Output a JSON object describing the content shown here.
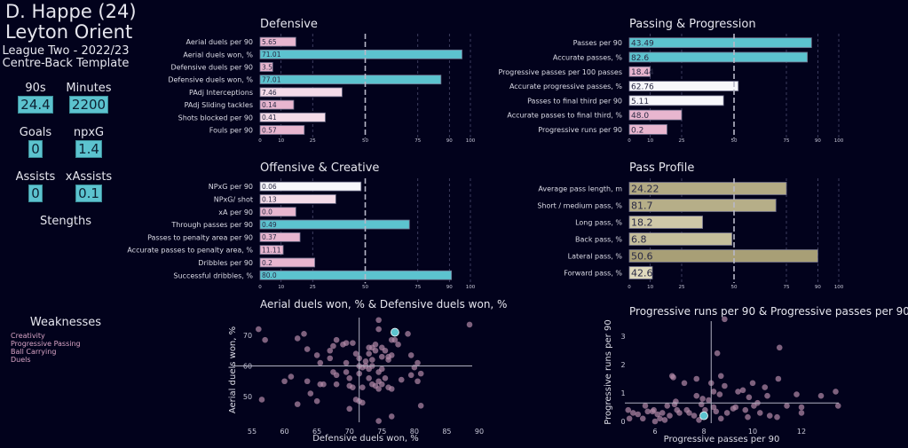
{
  "player": {
    "name": "D. Happe (24)",
    "team": "Leyton Orient",
    "league_season": "League Two - 2022/23",
    "template": "Centre-Back Template"
  },
  "stats": [
    {
      "label": "90s",
      "value": "24.4"
    },
    {
      "label": "Minutes",
      "value": "2200"
    },
    {
      "label": "Goals",
      "value": "0"
    },
    {
      "label": "npxG",
      "value": "1.4"
    },
    {
      "label": "Assists",
      "value": "0"
    },
    {
      "label": "xAssists",
      "value": "0.1"
    }
  ],
  "strengths_title": "Stengths",
  "strengths": [],
  "weaknesses_title": "Weaknesses",
  "weaknesses": [
    "Creativity",
    "Progressive Passing",
    "Ball Carrying",
    "Duels"
  ],
  "colors": {
    "background": "#02021c",
    "high": "#5cc3cf",
    "low": "#e8b6cf",
    "mid": "#f7f7fb",
    "pass_profile": "#aba27a",
    "highlight": "#5cc3cf",
    "scatter": "#b48aa8"
  },
  "chart_data": [
    {
      "type": "bar",
      "orientation": "horizontal",
      "title": "Defensive",
      "xticks": [
        0,
        10,
        25,
        50,
        75,
        90,
        100
      ],
      "xlim": [
        0,
        100
      ],
      "reference_line": 50,
      "bars": [
        {
          "label": "Aerial duels per 90",
          "value_label": "5.65",
          "percentile": 17
        },
        {
          "label": "Aerial duels won, %",
          "value_label": "71.01",
          "percentile": 96
        },
        {
          "label": "Defensive duels per 90",
          "value_label": "3.5",
          "percentile": 6
        },
        {
          "label": "Defensive duels won, %",
          "value_label": "77.01",
          "percentile": 86
        },
        {
          "label": "PAdj Interceptions",
          "value_label": "7.46",
          "percentile": 39
        },
        {
          "label": "PAdj Sliding tackles",
          "value_label": "0.14",
          "percentile": 16
        },
        {
          "label": "Shots blocked per 90",
          "value_label": "0.41",
          "percentile": 31
        },
        {
          "label": "Fouls per 90",
          "value_label": "0.57",
          "percentile": 21
        }
      ]
    },
    {
      "type": "bar",
      "orientation": "horizontal",
      "title": "Passing & Progression",
      "xticks": [
        0,
        10,
        25,
        50,
        75,
        90,
        100
      ],
      "xlim": [
        0,
        100
      ],
      "reference_line": 50,
      "bars": [
        {
          "label": "Passes per 90",
          "value_label": "43.49",
          "percentile": 87
        },
        {
          "label": "Accurate passes, %",
          "value_label": "82.6",
          "percentile": 85
        },
        {
          "label": "Progressive passes per 100 passes",
          "value_label": "18.44",
          "percentile": 10
        },
        {
          "label": "Accurate progressive passes, %",
          "value_label": "62.76",
          "percentile": 52
        },
        {
          "label": "Passes to final third per 90",
          "value_label": "5.11",
          "percentile": 45
        },
        {
          "label": "Accurate passes to final third, %",
          "value_label": "48.0",
          "percentile": 25
        },
        {
          "label": "Progressive runs per 90",
          "value_label": "0.2",
          "percentile": 18
        }
      ]
    },
    {
      "type": "bar",
      "orientation": "horizontal",
      "title": "Offensive & Creative",
      "xticks": [
        0,
        10,
        25,
        50,
        75,
        90,
        100
      ],
      "xlim": [
        0,
        100
      ],
      "reference_line": 50,
      "bars": [
        {
          "label": "NPxG per 90",
          "value_label": "0.06",
          "percentile": 48
        },
        {
          "label": "NPxG/ shot",
          "value_label": "0.13",
          "percentile": 36
        },
        {
          "label": "xA per 90",
          "value_label": "0.0",
          "percentile": 17
        },
        {
          "label": "Through passes per 90",
          "value_label": "0.49",
          "percentile": 71
        },
        {
          "label": "Passes to penalty area per 90",
          "value_label": "0.37",
          "percentile": 19
        },
        {
          "label": "Accurate passes to penalty area, %",
          "value_label": "11.11",
          "percentile": 11
        },
        {
          "label": "Dribbles per 90",
          "value_label": "0.2",
          "percentile": 26
        },
        {
          "label": "Successful dribbles, %",
          "value_label": "80.0",
          "percentile": 91
        }
      ]
    },
    {
      "type": "bar",
      "orientation": "horizontal",
      "title": "Pass Profile",
      "xticks": [
        0,
        10,
        25,
        50,
        75,
        90,
        100
      ],
      "xlim": [
        0,
        100
      ],
      "reference_line": 50,
      "bars": [
        {
          "label": "Average pass length, m",
          "value_label": "24.22",
          "percentile": 75
        },
        {
          "label": "Short / medium pass, %",
          "value_label": "81.7",
          "percentile": 70
        },
        {
          "label": "Long pass, %",
          "value_label": "18.2",
          "percentile": 35
        },
        {
          "label": "Back pass, %",
          "value_label": "6.8",
          "percentile": 49
        },
        {
          "label": "Lateral pass, %",
          "value_label": "50.6",
          "percentile": 90
        },
        {
          "label": "Forward pass, %",
          "value_label": "42.6",
          "percentile": 11
        }
      ]
    },
    {
      "type": "scatter",
      "title": "Aerial duels won, % & Defensive duels won, %",
      "xlabel": "Defensive duels won, %",
      "ylabel": "Aerial duels won, %",
      "xticks": [
        55,
        60,
        65,
        70,
        75,
        80,
        85,
        90
      ],
      "yticks": [
        50,
        60,
        70
      ],
      "mean_x": 71.5,
      "mean_y": 60,
      "highlight": [
        77,
        71
      ],
      "points": [
        [
          56,
          72
        ],
        [
          57,
          68.5
        ],
        [
          56.5,
          49
        ],
        [
          62,
          69
        ],
        [
          63,
          70.5
        ],
        [
          63.5,
          65.5
        ],
        [
          63.5,
          55
        ],
        [
          62,
          47.5
        ],
        [
          64,
          51
        ],
        [
          65,
          63.5
        ],
        [
          65.5,
          61
        ],
        [
          65.5,
          54
        ],
        [
          66,
          54
        ],
        [
          65,
          48.5
        ],
        [
          61,
          56.5
        ],
        [
          60,
          55
        ],
        [
          67,
          65
        ],
        [
          67.5,
          66.5
        ],
        [
          68,
          68.5
        ],
        [
          69,
          67
        ],
        [
          69.5,
          67.5
        ],
        [
          70.5,
          67.5
        ],
        [
          67,
          62.5
        ],
        [
          67.5,
          58
        ],
        [
          68,
          57
        ],
        [
          68,
          54
        ],
        [
          69.5,
          61
        ],
        [
          69.5,
          58
        ],
        [
          70,
          56
        ],
        [
          70,
          53.5
        ],
        [
          70.5,
          53
        ],
        [
          70,
          46
        ],
        [
          71.5,
          62.5
        ],
        [
          71,
          64
        ],
        [
          71.5,
          57.5
        ],
        [
          71,
          49
        ],
        [
          71.5,
          48.5
        ],
        [
          72,
          48
        ],
        [
          72.5,
          60
        ],
        [
          72,
          53
        ],
        [
          73,
          66
        ],
        [
          73,
          64
        ],
        [
          73.5,
          62
        ],
        [
          73.5,
          66
        ],
        [
          74,
          67
        ],
        [
          74,
          65
        ],
        [
          73.5,
          60
        ],
        [
          73,
          56
        ],
        [
          74.5,
          58
        ],
        [
          73.5,
          54
        ],
        [
          74,
          53.5
        ],
        [
          74.5,
          55
        ],
        [
          75,
          66
        ],
        [
          75.5,
          65
        ],
        [
          75,
          63
        ],
        [
          76,
          63
        ],
        [
          76,
          62
        ],
        [
          75,
          59
        ],
        [
          75.5,
          56
        ],
        [
          74.5,
          52.5
        ],
        [
          75,
          54
        ],
        [
          76,
          53
        ],
        [
          76.5,
          52.5
        ],
        [
          74.5,
          75
        ],
        [
          74.5,
          72
        ],
        [
          74.5,
          42
        ],
        [
          76.5,
          68.5
        ],
        [
          77,
          68.5
        ],
        [
          76.5,
          63.5
        ],
        [
          77.5,
          67
        ],
        [
          79,
          70.5
        ],
        [
          79.5,
          63.5
        ],
        [
          80,
          59.5
        ],
        [
          80.5,
          61
        ],
        [
          79.5,
          57
        ],
        [
          78,
          55.5
        ],
        [
          80.5,
          55
        ],
        [
          81,
          57.5
        ],
        [
          81,
          47
        ],
        [
          76.5,
          43.5
        ],
        [
          88.5,
          73.5
        ],
        [
          72,
          59.5
        ],
        [
          73,
          59
        ],
        [
          71.5,
          60
        ],
        [
          72.5,
          61.5
        ]
      ]
    },
    {
      "type": "scatter",
      "title": "Progressive runs per 90 & Progressive passes per 90",
      "xlabel": "Progressive passes per 90",
      "ylabel": "Progressive runs per 90",
      "xticks": [
        6,
        8,
        10,
        12
      ],
      "yticks": [
        0,
        1,
        2,
        3
      ],
      "mean_x": 8.3,
      "mean_y": 0.65,
      "highlight": [
        8.0,
        0.2
      ],
      "points": [
        [
          4.9,
          0.4
        ],
        [
          4.95,
          0.1
        ],
        [
          5.1,
          0.3
        ],
        [
          5.3,
          0.25
        ],
        [
          5.5,
          0.1
        ],
        [
          5.6,
          0.55
        ],
        [
          5.7,
          0.35
        ],
        [
          5.9,
          0.35
        ],
        [
          5.95,
          0.4
        ],
        [
          6,
          0
        ],
        [
          6.1,
          0.25
        ],
        [
          6.2,
          0.1
        ],
        [
          6.4,
          0.05
        ],
        [
          6.5,
          0.55
        ],
        [
          6.6,
          0.2
        ],
        [
          6.7,
          1.6
        ],
        [
          6.75,
          1.55
        ],
        [
          6.8,
          0.6
        ],
        [
          6.85,
          0.7
        ],
        [
          6.9,
          0.4
        ],
        [
          7,
          0.3
        ],
        [
          7.2,
          1.35
        ],
        [
          7.3,
          0.4
        ],
        [
          7.6,
          0.2
        ],
        [
          7.7,
          1.5
        ],
        [
          7.7,
          0.9
        ],
        [
          7.8,
          0.05
        ],
        [
          7.9,
          0.6
        ],
        [
          7.95,
          0.8
        ],
        [
          8.05,
          0.4
        ],
        [
          8.2,
          0.75
        ],
        [
          8.3,
          1.35
        ],
        [
          8.4,
          0.5
        ],
        [
          8.4,
          1.05
        ],
        [
          8.5,
          0.35
        ],
        [
          8.55,
          2.4
        ],
        [
          8.7,
          1.6
        ],
        [
          8.65,
          0.95
        ],
        [
          8.7,
          0.1
        ],
        [
          8.85,
          1.25
        ],
        [
          8.85,
          3.6
        ],
        [
          8.95,
          0.3
        ],
        [
          9.3,
          0.5
        ],
        [
          9.4,
          1.05
        ],
        [
          9.6,
          1.1
        ],
        [
          9.7,
          0.4
        ],
        [
          9.8,
          0.15
        ],
        [
          9.85,
          0.85
        ],
        [
          10,
          1.35
        ],
        [
          10.05,
          0.55
        ],
        [
          10.2,
          0.65
        ],
        [
          10.3,
          0.3
        ],
        [
          10.5,
          1.2
        ],
        [
          10.6,
          0.9
        ],
        [
          10.7,
          0.2
        ],
        [
          11,
          0.15
        ],
        [
          11.05,
          1.5
        ],
        [
          11.1,
          2.6
        ],
        [
          11.4,
          0.55
        ],
        [
          11.8,
          0.95
        ],
        [
          12,
          0.5
        ],
        [
          12,
          0.3
        ],
        [
          12.8,
          0.9
        ],
        [
          13.4,
          1.05
        ],
        [
          13.5,
          0.55
        ],
        [
          9.2,
          0.45
        ],
        [
          7.4,
          0.3
        ],
        [
          6.3,
          0.3
        ]
      ]
    }
  ]
}
